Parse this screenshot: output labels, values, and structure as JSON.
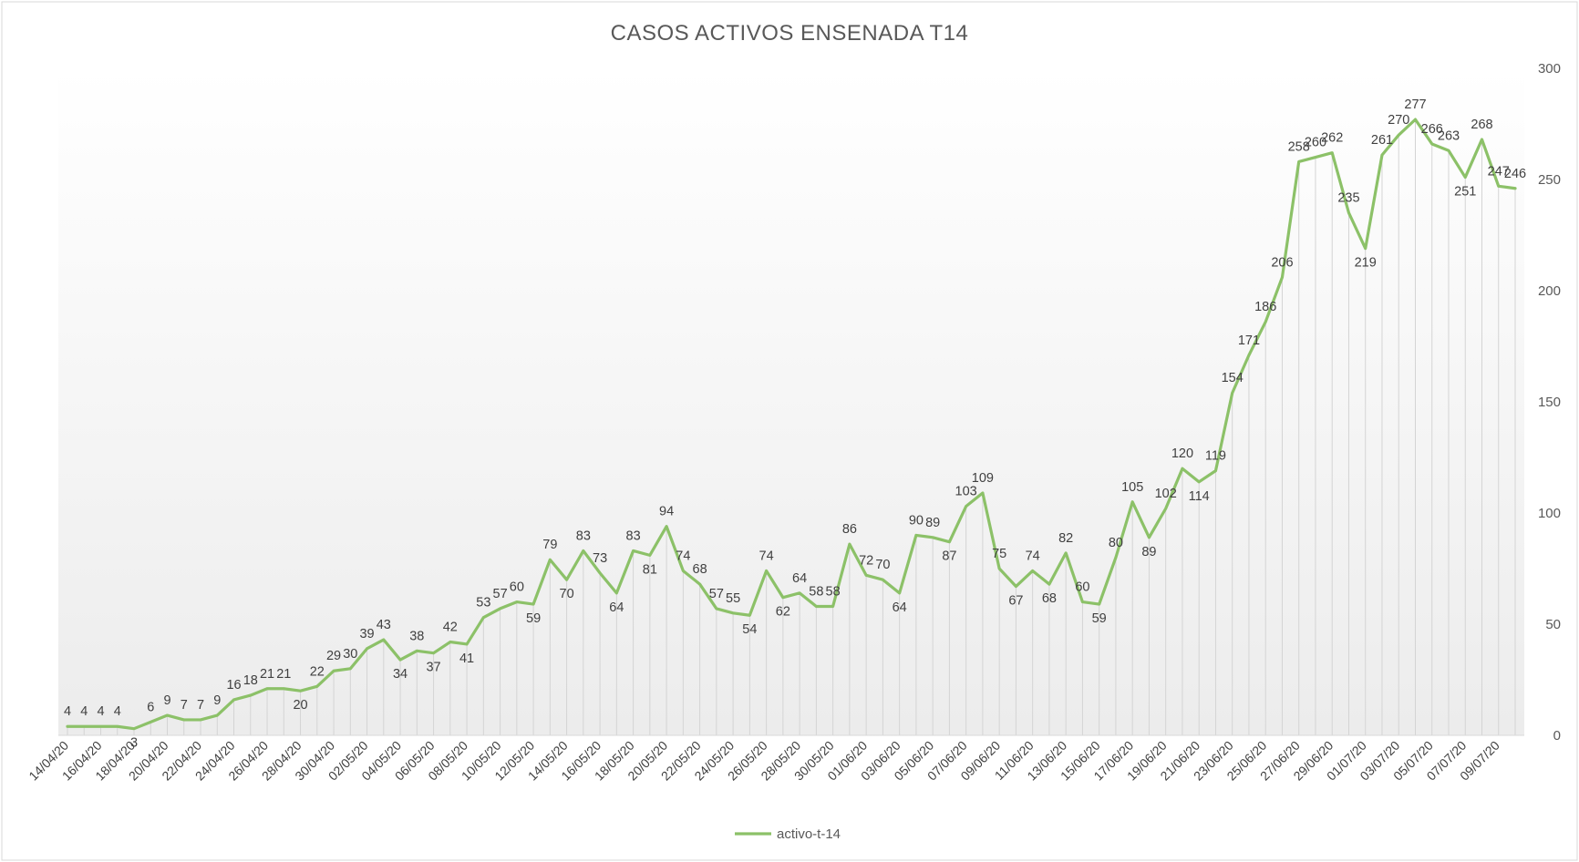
{
  "chart_data": {
    "type": "line",
    "title": "CASOS ACTIVOS ENSENADA T14",
    "xlabel": "",
    "ylabel": "",
    "ylim": [
      0,
      300
    ],
    "yticks": [
      0,
      50,
      100,
      150,
      200,
      250,
      300
    ],
    "y_axis_position": "right",
    "grid": false,
    "drop_lines": true,
    "legend_position": "bottom",
    "line_color": "#8CC168",
    "dates": [
      "14/04/20",
      "15/04/20",
      "16/04/20",
      "17/04/20",
      "18/04/20",
      "19/04/20",
      "20/04/20",
      "21/04/20",
      "22/04/20",
      "23/04/20",
      "24/04/20",
      "25/04/20",
      "26/04/20",
      "27/04/20",
      "28/04/20",
      "29/04/20",
      "30/04/20",
      "01/05/20",
      "02/05/20",
      "03/05/20",
      "04/05/20",
      "05/05/20",
      "06/05/20",
      "07/05/20",
      "08/05/20",
      "09/05/20",
      "10/05/20",
      "11/05/20",
      "12/05/20",
      "13/05/20",
      "14/05/20",
      "15/05/20",
      "16/05/20",
      "17/05/20",
      "18/05/20",
      "19/05/20",
      "20/05/20",
      "21/05/20",
      "22/05/20",
      "23/05/20",
      "24/05/20",
      "25/05/20",
      "26/05/20",
      "27/05/20",
      "28/05/20",
      "29/05/20",
      "30/05/20",
      "31/05/20",
      "01/06/20",
      "02/06/20",
      "03/06/20",
      "04/06/20",
      "05/06/20",
      "06/06/20",
      "07/06/20",
      "08/06/20",
      "09/06/20",
      "10/06/20",
      "11/06/20",
      "12/06/20",
      "13/06/20",
      "14/06/20",
      "15/06/20",
      "16/06/20",
      "17/06/20",
      "18/06/20",
      "19/06/20",
      "20/06/20",
      "21/06/20",
      "22/06/20",
      "23/06/20",
      "24/06/20",
      "25/06/20",
      "26/06/20",
      "27/06/20",
      "28/06/20",
      "29/06/20",
      "30/06/20",
      "01/07/20",
      "02/07/20",
      "03/07/20",
      "04/07/20",
      "05/07/20",
      "06/07/20",
      "07/07/20",
      "08/07/20",
      "09/07/20",
      "10/07/20"
    ],
    "x_tick_labels": [
      "14/04/20",
      "16/04/20",
      "18/04/20",
      "20/04/20",
      "22/04/20",
      "24/04/20",
      "26/04/20",
      "28/04/20",
      "30/04/20",
      "02/05/20",
      "04/05/20",
      "06/05/20",
      "08/05/20",
      "10/05/20",
      "12/05/20",
      "14/05/20",
      "16/05/20",
      "18/05/20",
      "20/05/20",
      "22/05/20",
      "24/05/20",
      "26/05/20",
      "28/05/20",
      "30/05/20",
      "01/06/20",
      "03/06/20",
      "05/06/20",
      "07/06/20",
      "09/06/20",
      "11/06/20",
      "13/06/20",
      "15/06/20",
      "17/06/20",
      "19/06/20",
      "21/06/20",
      "23/06/20",
      "25/06/20",
      "27/06/20",
      "29/06/20",
      "01/07/20",
      "03/07/20",
      "05/07/20",
      "07/07/20",
      "09/07/20"
    ],
    "series": [
      {
        "name": "activo-t-14",
        "values": [
          4,
          4,
          4,
          4,
          3,
          6,
          9,
          7,
          7,
          9,
          16,
          18,
          21,
          21,
          20,
          22,
          29,
          30,
          39,
          43,
          34,
          38,
          37,
          42,
          41,
          53,
          57,
          60,
          59,
          79,
          70,
          83,
          73,
          64,
          83,
          81,
          94,
          74,
          68,
          57,
          55,
          54,
          74,
          62,
          64,
          58,
          58,
          86,
          72,
          70,
          64,
          90,
          89,
          87,
          103,
          109,
          75,
          67,
          74,
          68,
          82,
          60,
          59,
          80,
          105,
          89,
          102,
          120,
          114,
          119,
          154,
          171,
          186,
          206,
          258,
          260,
          262,
          235,
          219,
          261,
          270,
          277,
          266,
          263,
          251,
          268,
          247,
          246
        ]
      }
    ]
  }
}
